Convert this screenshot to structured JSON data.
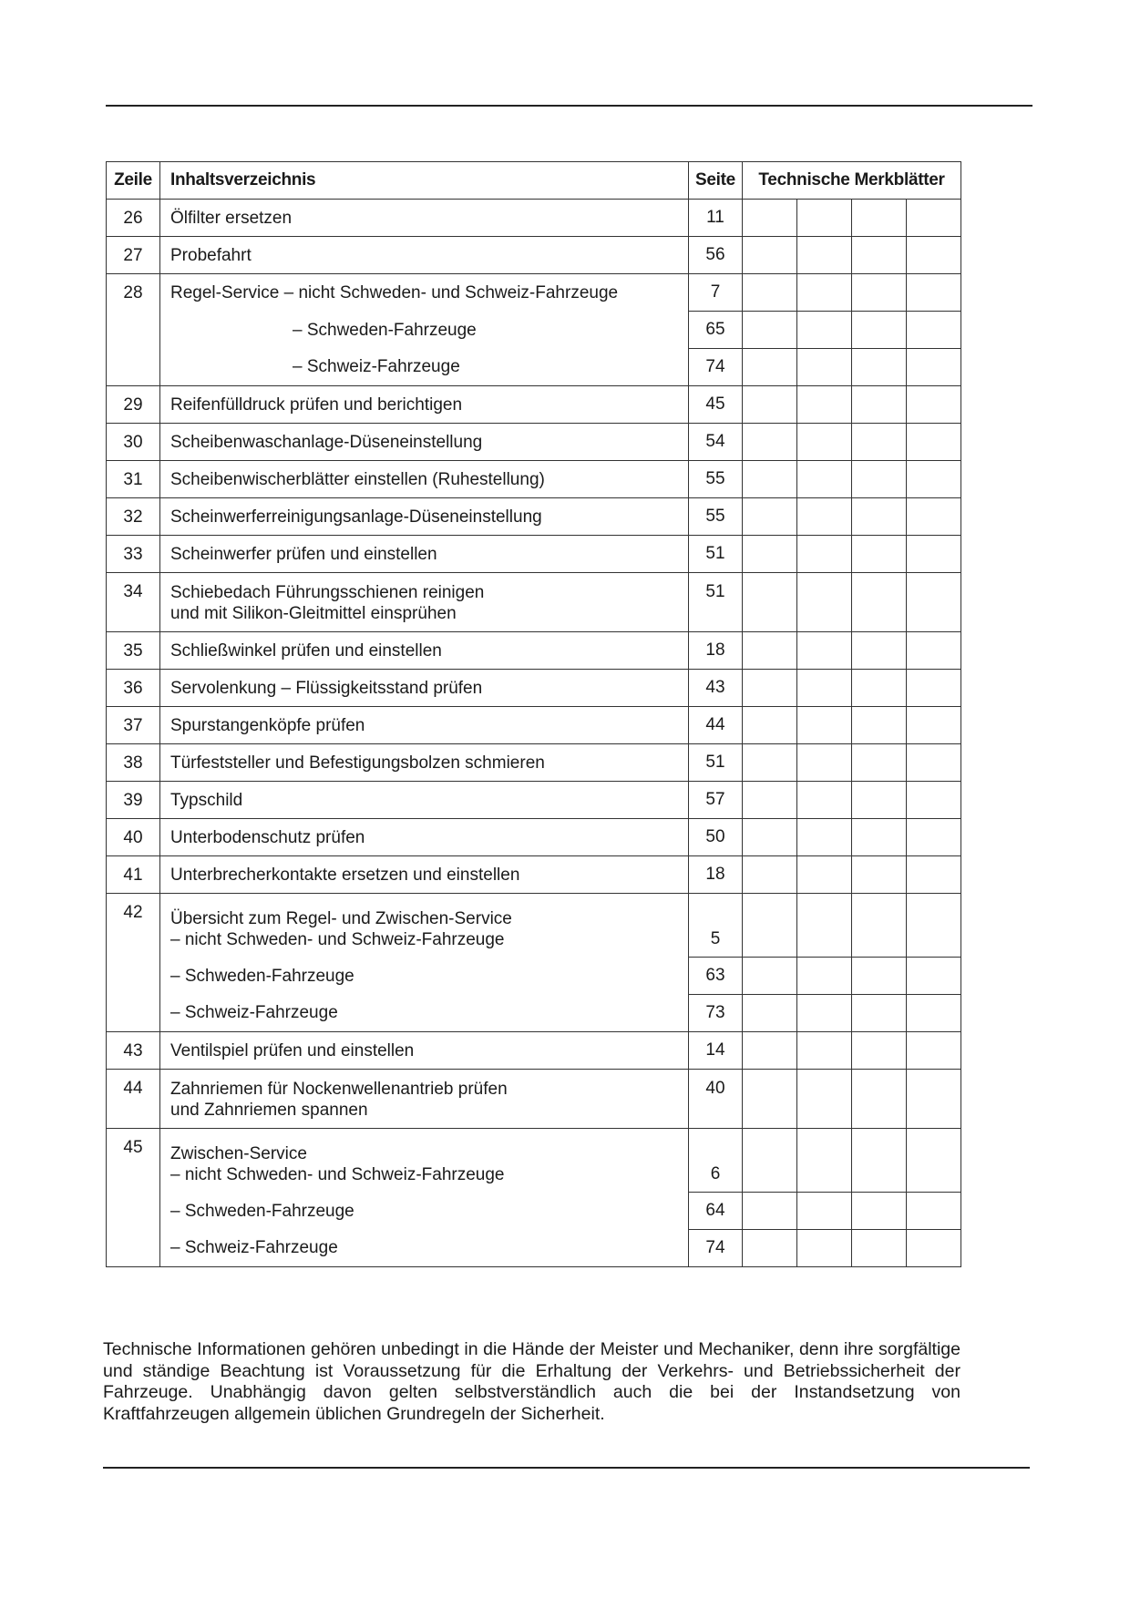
{
  "header": {
    "zeile": "Zeile",
    "inhalt": "Inhaltsverzeichnis",
    "seite": "Seite",
    "merkblaetter": "Technische Merkblätter"
  },
  "rows": [
    {
      "zeile": "26",
      "entries": [
        {
          "text": "Ölfilter ersetzen",
          "seite": "11"
        }
      ]
    },
    {
      "zeile": "27",
      "entries": [
        {
          "text": "Probefahrt",
          "seite": "56"
        }
      ]
    },
    {
      "zeile": "28",
      "entries": [
        {
          "text": "Regel-Service – nicht Schweden- und Schweiz-Fahrzeuge",
          "seite": "7"
        },
        {
          "text": "– Schweden-Fahrzeuge",
          "seite": "65",
          "indent": true
        },
        {
          "text": "– Schweiz-Fahrzeuge",
          "seite": "74",
          "indent": true
        }
      ]
    },
    {
      "zeile": "29",
      "entries": [
        {
          "text": "Reifenfülldruck prüfen und berichtigen",
          "seite": "45"
        }
      ]
    },
    {
      "zeile": "30",
      "entries": [
        {
          "text": "Scheibenwaschanlage-Düseneinstellung",
          "seite": "54"
        }
      ]
    },
    {
      "zeile": "31",
      "entries": [
        {
          "text": "Scheibenwischerblätter einstellen (Ruhestellung)",
          "seite": "55"
        }
      ]
    },
    {
      "zeile": "32",
      "entries": [
        {
          "text": "Scheinwerferreinigungsanlage-Düseneinstellung",
          "seite": "55"
        }
      ]
    },
    {
      "zeile": "33",
      "entries": [
        {
          "text": "Scheinwerfer prüfen und einstellen",
          "seite": "51"
        }
      ]
    },
    {
      "zeile": "34",
      "entries": [
        {
          "text": "Schiebedach Führungsschienen reinigen\nund mit Silikon-Gleitmittel einsprühen",
          "seite": "51",
          "tall": "top"
        }
      ]
    },
    {
      "zeile": "35",
      "entries": [
        {
          "text": "Schließwinkel prüfen und einstellen",
          "seite": "18"
        }
      ]
    },
    {
      "zeile": "36",
      "entries": [
        {
          "text": "Servolenkung – Flüssigkeitsstand prüfen",
          "seite": "43"
        }
      ]
    },
    {
      "zeile": "37",
      "entries": [
        {
          "text": "Spurstangenköpfe prüfen",
          "seite": "44"
        }
      ]
    },
    {
      "zeile": "38",
      "entries": [
        {
          "text": "Türfeststeller und Befestigungsbolzen schmieren",
          "seite": "51"
        }
      ]
    },
    {
      "zeile": "39",
      "entries": [
        {
          "text": "Typschild",
          "seite": "57"
        }
      ]
    },
    {
      "zeile": "40",
      "entries": [
        {
          "text": "Unterbodenschutz prüfen",
          "seite": "50"
        }
      ]
    },
    {
      "zeile": "41",
      "entries": [
        {
          "text": "Unterbrecherkontakte ersetzen und einstellen",
          "seite": "18"
        }
      ]
    },
    {
      "zeile": "42",
      "entries": [
        {
          "text": "Übersicht zum Regel- und Zwischen-Service\n– nicht Schweden- und Schweiz-Fahrzeuge",
          "seite": "5",
          "tall": "bot"
        },
        {
          "text": "– Schweden-Fahrzeuge",
          "seite": "63"
        },
        {
          "text": "– Schweiz-Fahrzeuge",
          "seite": "73"
        }
      ]
    },
    {
      "zeile": "43",
      "entries": [
        {
          "text": "Ventilspiel prüfen und einstellen",
          "seite": "14"
        }
      ]
    },
    {
      "zeile": "44",
      "entries": [
        {
          "text": "Zahnriemen für Nockenwellenantrieb prüfen\nund Zahnriemen spannen",
          "seite": "40",
          "tall": "top"
        }
      ]
    },
    {
      "zeile": "45",
      "entries": [
        {
          "text": "Zwischen-Service\n– nicht Schweden- und Schweiz-Fahrzeuge",
          "seite": "6",
          "tall": "bot"
        },
        {
          "text": "– Schweden-Fahrzeuge",
          "seite": "64"
        },
        {
          "text": "– Schweiz-Fahrzeuge",
          "seite": "74"
        }
      ]
    }
  ],
  "notice": "Technische Informationen gehören unbedingt in die Hände der Meister und Mechaniker, denn ihre sorgfältige und ständige Beachtung ist Voraussetzung für die Erhaltung der Verkehrs- und Betriebssicherheit der Fahrzeuge. Unabhängig davon gelten selbstverständlich auch die bei der Instandsetzung von Kraftfahrzeugen allgemein üblichen Grundregeln der Sicherheit."
}
